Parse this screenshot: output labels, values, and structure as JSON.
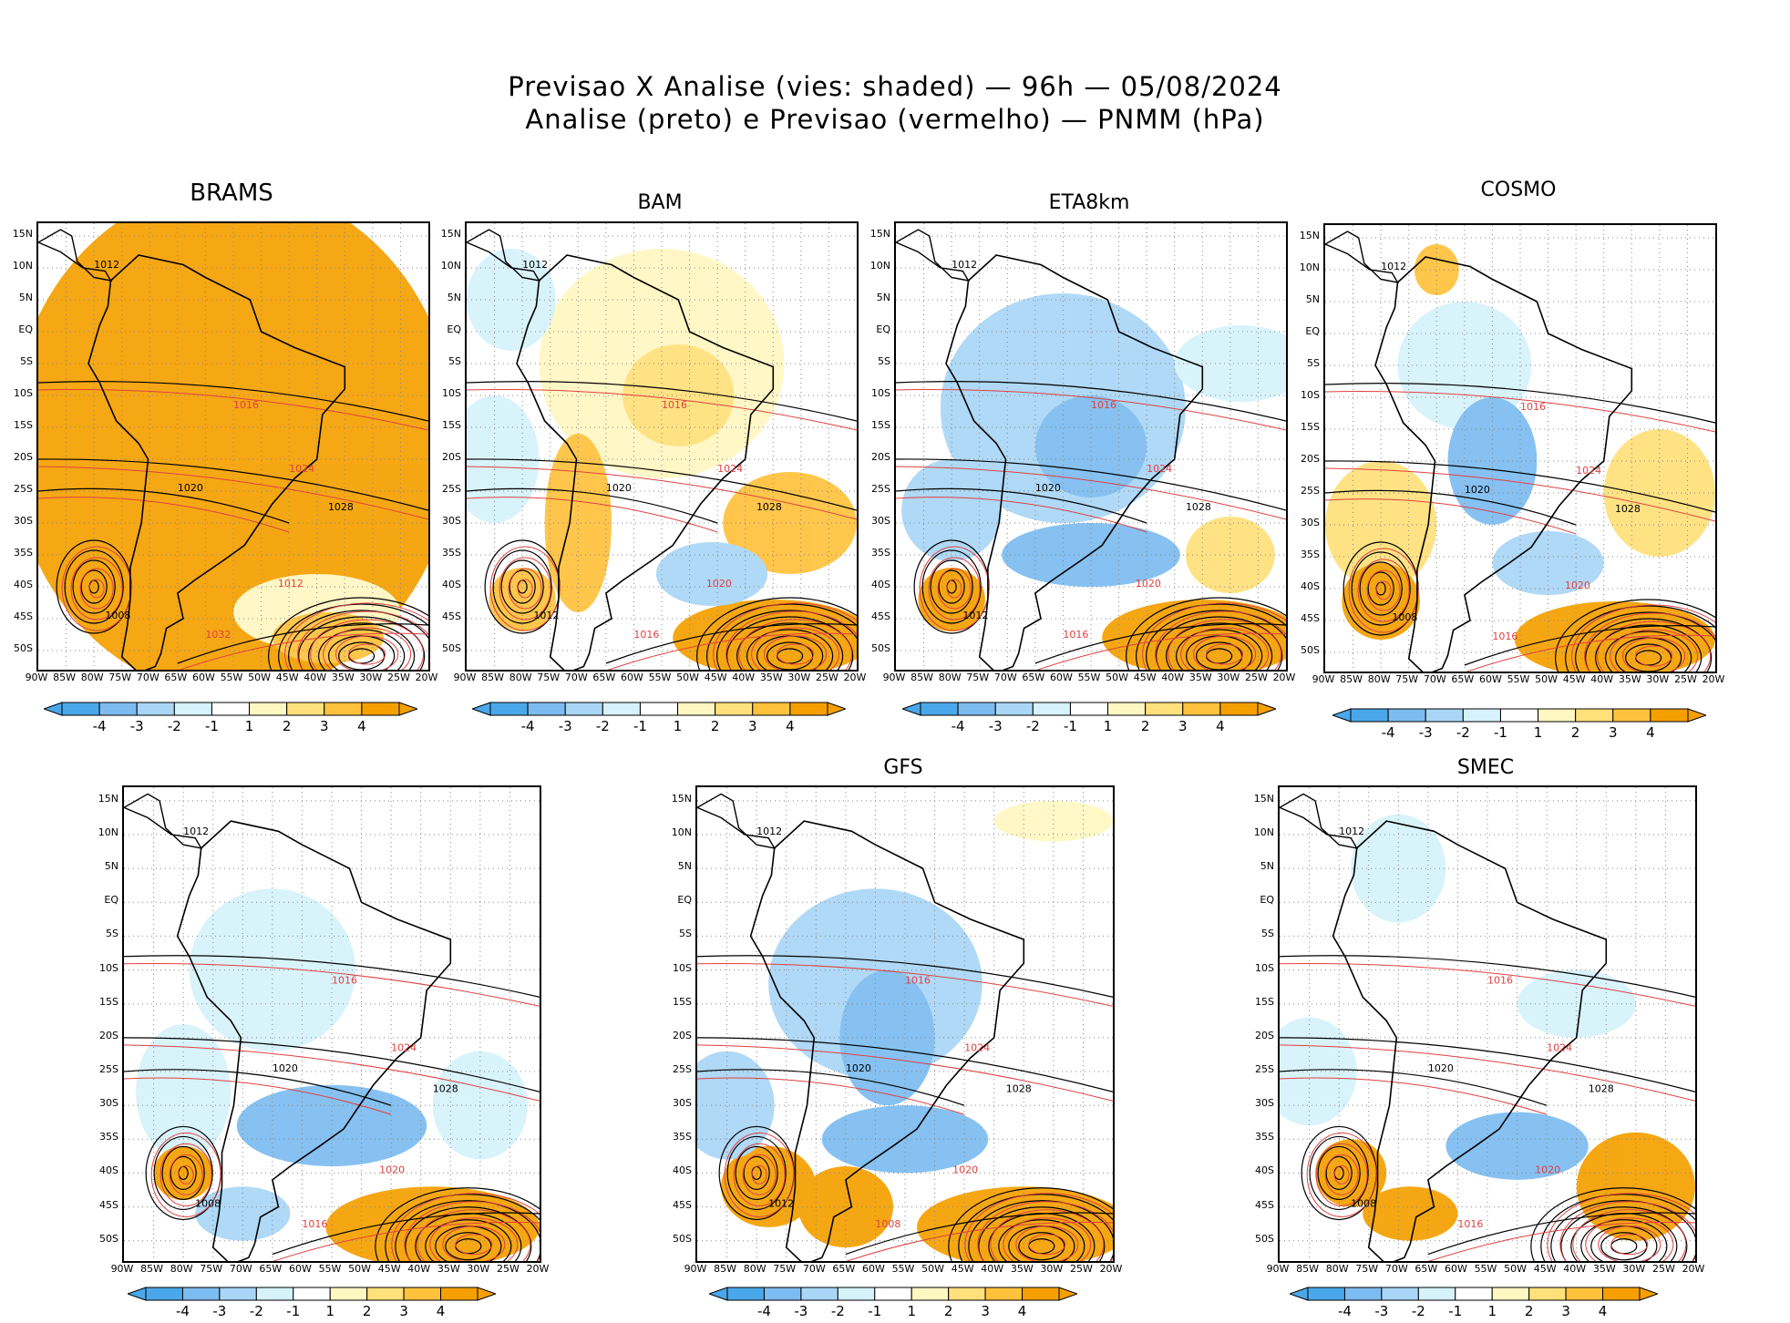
{
  "title_line1": "Previsao X Analise (vies: shaded) — 96h — 05/08/2024",
  "title_line2": "Analise (preto) e Previsao (vermelho) — PNMM (hPa)",
  "lat_ticks": [
    "15N",
    "10N",
    "5N",
    "EQ",
    "5S",
    "10S",
    "15S",
    "20S",
    "25S",
    "30S",
    "35S",
    "40S",
    "45S",
    "50S"
  ],
  "lon_ticks": [
    "90W",
    "85W",
    "80W",
    "75W",
    "70W",
    "65W",
    "60W",
    "55W",
    "50W",
    "45W",
    "40W",
    "35W",
    "30W",
    "25W",
    "20W"
  ],
  "colorbar_labels": [
    "-4",
    "-3",
    "-2",
    "-1",
    "1",
    "2",
    "3",
    "4"
  ],
  "colors": {
    "neg4": "#4aa8ea",
    "neg3": "#7cbcf0",
    "neg2": "#a9d6f6",
    "neg1": "#d6f2fb",
    "pos1": "#fff7c2",
    "pos2": "#ffe07a",
    "pos3": "#ffc23c",
    "pos4": "#f5a000",
    "analysis": "#000000",
    "forecast": "#e04040"
  },
  "panels": [
    {
      "name": "BRAMS",
      "bias": "warm-strong",
      "labels": [
        {
          "t": "1012"
        },
        {
          "t": "1016"
        },
        {
          "t": "1020"
        },
        {
          "t": "1024"
        },
        {
          "t": "1028"
        },
        {
          "t": "1032"
        },
        {
          "t": "1008"
        },
        {
          "t": "1012"
        }
      ]
    },
    {
      "name": "BAM",
      "bias": "warm",
      "labels": [
        {
          "t": "1012"
        },
        {
          "t": "1016"
        },
        {
          "t": "1020"
        },
        {
          "t": "1024"
        },
        {
          "t": "1028"
        },
        {
          "t": "1016"
        },
        {
          "t": "1012"
        },
        {
          "t": "1020"
        }
      ]
    },
    {
      "name": "ETA8km",
      "bias": "cold",
      "labels": [
        {
          "t": "1012"
        },
        {
          "t": "1016"
        },
        {
          "t": "1020"
        },
        {
          "t": "1024"
        },
        {
          "t": "1028"
        },
        {
          "t": "1016"
        },
        {
          "t": "1012"
        },
        {
          "t": "1020"
        }
      ]
    },
    {
      "name": "COSMO",
      "bias": "mixed",
      "labels": [
        {
          "t": "1012"
        },
        {
          "t": "1016"
        },
        {
          "t": "1020"
        },
        {
          "t": "1024"
        },
        {
          "t": "1028"
        },
        {
          "t": "1016"
        },
        {
          "t": "1008"
        },
        {
          "t": "1020"
        }
      ]
    },
    {
      "name": "",
      "bias": "mixed-cold",
      "labels": [
        {
          "t": "1012"
        },
        {
          "t": "1016"
        },
        {
          "t": "1020"
        },
        {
          "t": "1024"
        },
        {
          "t": "1028"
        },
        {
          "t": "1016"
        },
        {
          "t": "1008"
        },
        {
          "t": "1020"
        }
      ]
    },
    {
      "name": "GFS",
      "bias": "cold-warm",
      "labels": [
        {
          "t": "1012"
        },
        {
          "t": "1016"
        },
        {
          "t": "1020"
        },
        {
          "t": "1024"
        },
        {
          "t": "1028"
        },
        {
          "t": "1008"
        },
        {
          "t": "1012"
        },
        {
          "t": "1020"
        }
      ]
    },
    {
      "name": "SMEC",
      "bias": "neutral",
      "labels": [
        {
          "t": "1012"
        },
        {
          "t": "1016"
        },
        {
          "t": "1020"
        },
        {
          "t": "1024"
        },
        {
          "t": "1028"
        },
        {
          "t": "1016"
        },
        {
          "t": "1008"
        },
        {
          "t": "1020"
        }
      ]
    }
  ]
}
